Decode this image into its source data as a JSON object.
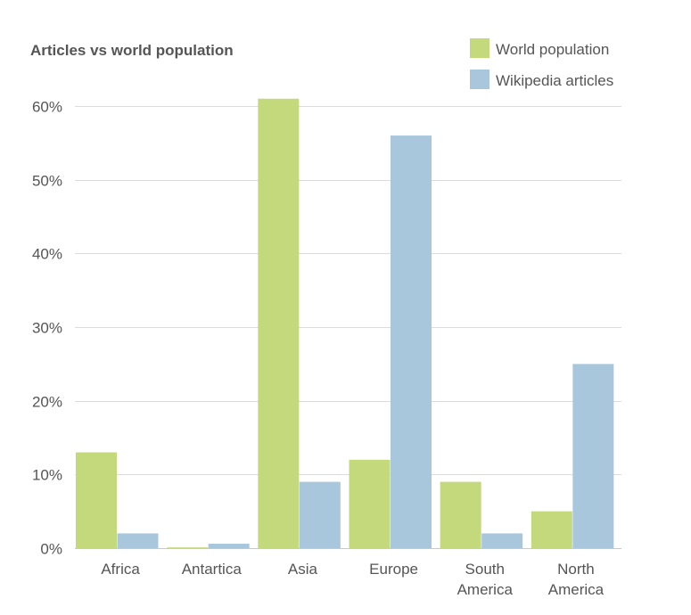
{
  "chart_data": {
    "type": "bar",
    "title": "Articles vs world population",
    "xlabel": "",
    "ylabel": "",
    "categories": [
      [
        "Africa"
      ],
      [
        "Antartica"
      ],
      [
        "Asia"
      ],
      [
        "Europe"
      ],
      [
        "South",
        "America"
      ],
      [
        "North",
        "America"
      ]
    ],
    "series": [
      {
        "name": "World population",
        "color": "#c3d97c",
        "values": [
          13,
          0.1,
          61,
          12,
          9,
          5
        ]
      },
      {
        "name": "Wikipedia articles",
        "color": "#a9c7dc",
        "values": [
          2,
          0.6,
          9,
          56,
          2,
          25
        ]
      }
    ],
    "ylim": [
      0,
      60
    ],
    "yticks": [
      {
        "value": 0,
        "label": "0%"
      },
      {
        "value": 10,
        "label": "10%"
      },
      {
        "value": 20,
        "label": "20%"
      },
      {
        "value": 30,
        "label": "30%"
      },
      {
        "value": 40,
        "label": "40%"
      },
      {
        "value": 50,
        "label": "50%"
      },
      {
        "value": 60,
        "label": "60%"
      }
    ],
    "grid": true,
    "legend": "top-right"
  }
}
